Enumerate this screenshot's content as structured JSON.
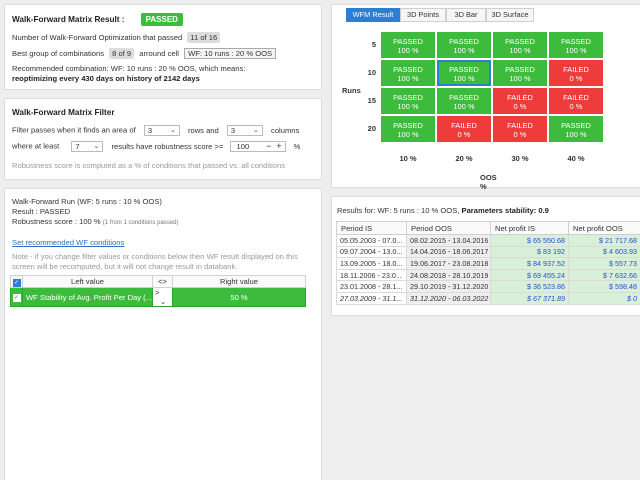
{
  "result": {
    "title": "Walk-Forward Matrix Result :",
    "status": "PASSED",
    "num_label": "Number of Walk-Forward Optimization that passed",
    "num_value": "11 of 16",
    "best_label": "Best group of combinations",
    "best_value": "8 of 9",
    "around_label": "arround cell",
    "around_value": "WF: 10 runs : 20 % OOS",
    "recommended": "Recommended combination: WF: 10 runs : 20 % OOS, which means:",
    "reopt": "reoptimizing every 430 days on history of 2142 days"
  },
  "filter": {
    "title": "Walk-Forward Matrix Filter",
    "l1_a": "Filter passes when it finds an area of",
    "sel1": "3",
    "l1_b": "rows and",
    "sel2": "3",
    "l1_c": "columns",
    "l2_a": "where at least",
    "sel3": "7",
    "l2_b": "results have robustness score >=",
    "score": "100",
    "pct": "%",
    "note": "Robustness score is computed as a % of conditions that passed vs. all conditions"
  },
  "run": {
    "title": "Walk-Forward Run (WF: 5 runs : 10 % OOS)",
    "result": "Result : PASSED",
    "robust_a": "Robustness score : 100 %",
    "robust_b": "(1 from 1 conditions passed)",
    "link": "Set recommended WF conditions",
    "note": "Note - if you change filter values or conditions below then WF result displayed on this screen will be recomputed, but it will not change result in databank.",
    "cols": [
      "Left value",
      "<>",
      "Right value"
    ],
    "cond_left": "WF Stability of Avg. Profit Per Day (...",
    "cond_op": ">",
    "cond_right": "50 %"
  },
  "tabs": [
    "WFM Result",
    "3D Points",
    "3D Bar",
    "3D Surface"
  ],
  "matrix": {
    "row_axis": "Runs",
    "col_axis": "OOS %",
    "rows": [
      "5",
      "10",
      "15",
      "20"
    ],
    "cols": [
      "10 %",
      "20 %",
      "30 %",
      "40 %"
    ],
    "cells": [
      [
        {
          "s": "PASSED",
          "v": "100 %"
        },
        {
          "s": "PASSED",
          "v": "100 %"
        },
        {
          "s": "PASSED",
          "v": "100 %"
        },
        {
          "s": "PASSED",
          "v": "100 %"
        }
      ],
      [
        {
          "s": "PASSED",
          "v": "100 %"
        },
        {
          "s": "PASSED",
          "v": "100 %"
        },
        {
          "s": "PASSED",
          "v": "100 %"
        },
        {
          "s": "FAILED",
          "v": "0 %"
        }
      ],
      [
        {
          "s": "PASSED",
          "v": "100 %"
        },
        {
          "s": "PASSED",
          "v": "100 %"
        },
        {
          "s": "FAILED",
          "v": "0 %"
        },
        {
          "s": "FAILED",
          "v": "0 %"
        }
      ],
      [
        {
          "s": "PASSED",
          "v": "100 %"
        },
        {
          "s": "FAILED",
          "v": "0 %"
        },
        {
          "s": "FAILED",
          "v": "0 %"
        },
        {
          "s": "PASSED",
          "v": "100 %"
        }
      ]
    ]
  },
  "results": {
    "title_a": "Results for: WF: 5 runs : 10 % OOS,",
    "title_b": "Parameters stability: 0.9",
    "cols": [
      "Period IS",
      "Period OOS",
      "Net profit IS",
      "Net profit OOS"
    ],
    "rows": [
      [
        "05.05.2003 - 07.0...",
        "08.02.2015 - 13.04.2016",
        "$ 65 550.68",
        "$ 21 717.68"
      ],
      [
        "09.07.2004 - 13.0...",
        "14.04.2016 - 18.06.2017",
        "$ 83 192",
        "$ 4 603.93"
      ],
      [
        "13.09.2005 - 18.0...",
        "19.06.2017 - 23.08.2018",
        "$ 84 937.52",
        "$ 557.73"
      ],
      [
        "18.11.2006 - 23.0...",
        "24.08.2018 - 28.10.2019",
        "$ 69 455.24",
        "$ 7 632.66"
      ],
      [
        "23.01.2008 - 28.1...",
        "29.10.2019 - 31.12.2020",
        "$ 36 523.86",
        "$ 598.48"
      ],
      [
        "27.03.2009 - 31.1...",
        "31.12.2020 - 06.03.2022 ...",
        "$ 67 371.89",
        "$ 0"
      ]
    ]
  }
}
